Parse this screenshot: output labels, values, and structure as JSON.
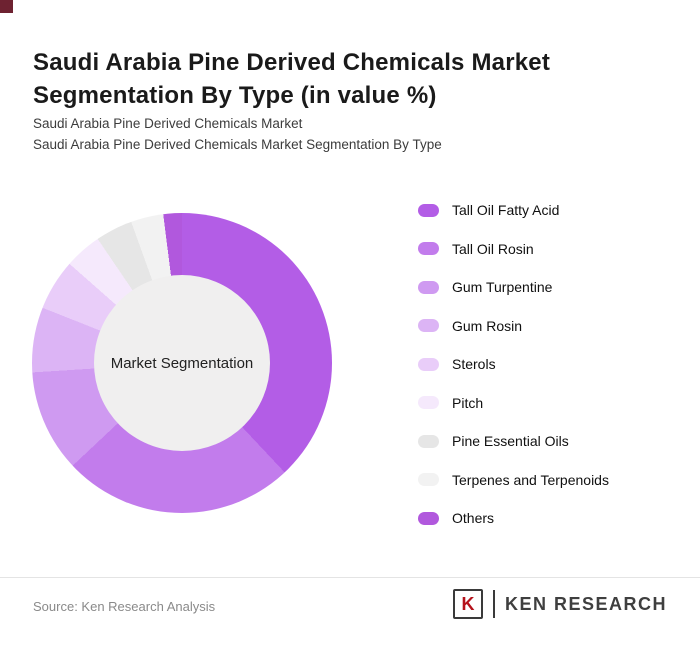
{
  "page": {
    "title": "Saudi Arabia Pine Derived Chemicals Market Segmentation By Type (in value %)",
    "subtitle_line1": "Saudi Arabia Pine Derived Chemicals Market",
    "subtitle_line2": "Saudi Arabia Pine Derived Chemicals Market Segmentation By Type",
    "accent_color": "#6e2231"
  },
  "chart_data": {
    "type": "pie",
    "donut": true,
    "center_label": "Market Segmentation",
    "categories": [
      "Tall Oil Fatty Acid",
      "Tall Oil Rosin",
      "Gum Turpentine",
      "Gum Rosin",
      "Sterols",
      "Pitch",
      "Pine Essential Oils",
      "Terpenes and Terpenoids",
      "Others"
    ],
    "values": [
      38,
      25,
      11,
      7,
      5.5,
      4,
      4,
      3.5,
      2
    ],
    "colors": [
      "#b35de6",
      "#c27cec",
      "#cf9af1",
      "#dcb4f5",
      "#e9cdf9",
      "#f5e9fc",
      "#e6e6e6",
      "#f2f2f2",
      "#b158dd"
    ],
    "legend_position": "right",
    "hole_color": "#f0efef"
  },
  "footer": {
    "source": "Source: Ken Research Analysis",
    "logo_letter": "K",
    "logo_text": "KEN RESEARCH"
  }
}
